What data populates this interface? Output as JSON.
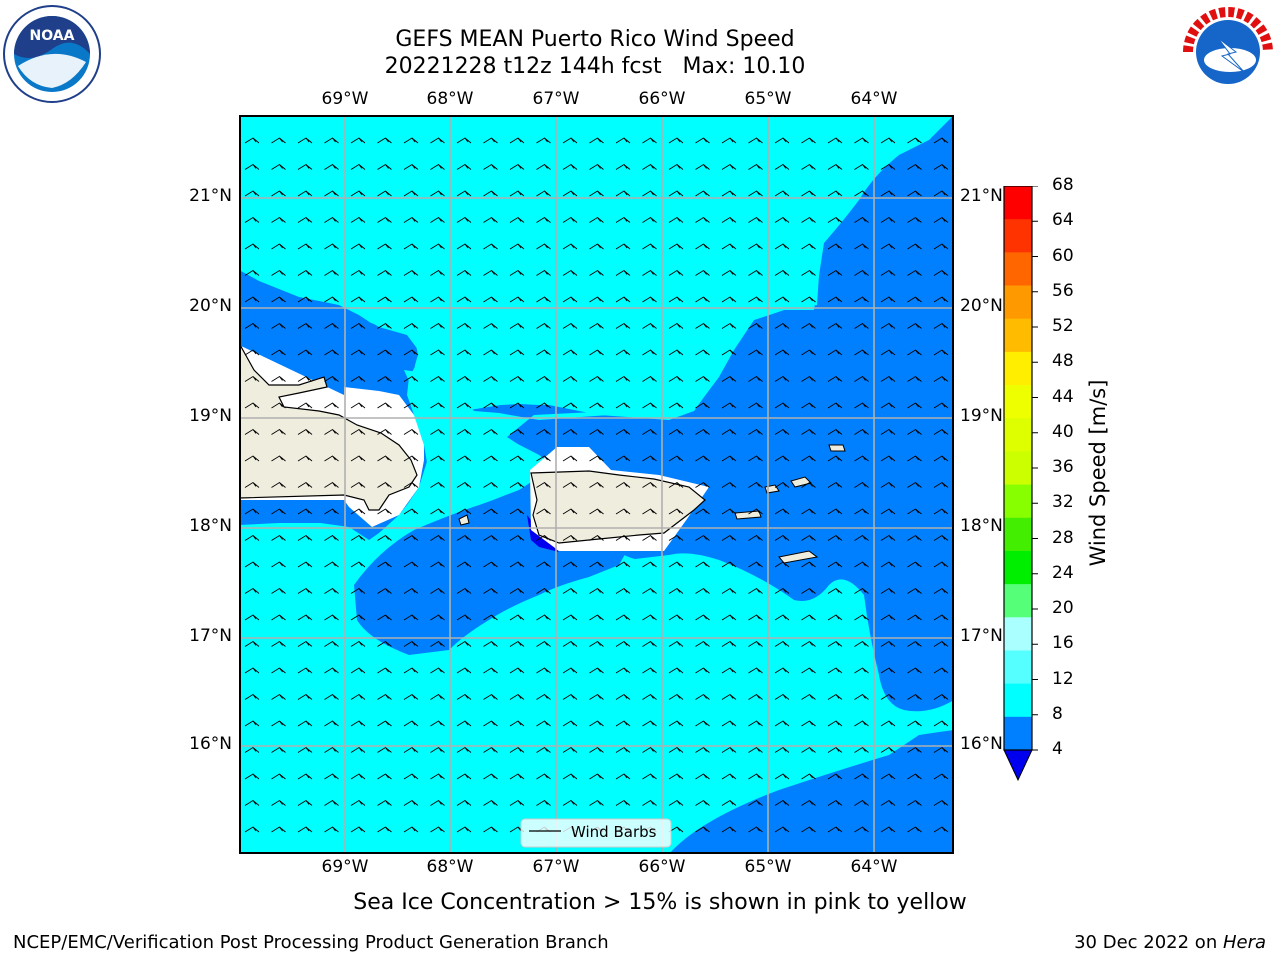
{
  "title_line1": "GEFS MEAN Puerto Rico Wind Speed",
  "title_line2": "20221228 t12z 144h fcst   Max: 10.10",
  "lon_labels": [
    "69°W",
    "68°W",
    "67°W",
    "66°W",
    "65°W",
    "64°W"
  ],
  "lat_labels": [
    "21°N",
    "20°N",
    "19°N",
    "18°N",
    "17°N",
    "16°N"
  ],
  "colorbar": {
    "title": "Wind Speed [m/s]",
    "ticks": [
      "68",
      "64",
      "60",
      "56",
      "52",
      "48",
      "44",
      "40",
      "36",
      "32",
      "28",
      "24",
      "20",
      "16",
      "12",
      "8",
      "4"
    ],
    "colors": [
      "#ff0000",
      "#ff3300",
      "#ff6600",
      "#ff9900",
      "#ffbb00",
      "#ffee00",
      "#eeff00",
      "#ddff00",
      "#ccff00",
      "#88ff00",
      "#44ee00",
      "#00ee00",
      "#55ff77",
      "#aaffff",
      "#55ffff",
      "#00ffff",
      "#0080ff"
    ],
    "under_color": "#0000ee"
  },
  "fill_colors": {
    "low": "#0080ff",
    "mid": "#00ffff",
    "min": "#0000ee",
    "land": "#efedde"
  },
  "legend_label": "Wind Barbs",
  "caption": "Sea Ice Concentration > 15% is shown in pink to yellow",
  "footer_left": "NCEP/EMC/Verification Post Processing Product Generation Branch",
  "footer_date": "30 Dec 2022 on ",
  "footer_machine": "Hera",
  "noaa_text": "NOAA",
  "nws_text": "NATIONAL WEATHER SERVICE"
}
